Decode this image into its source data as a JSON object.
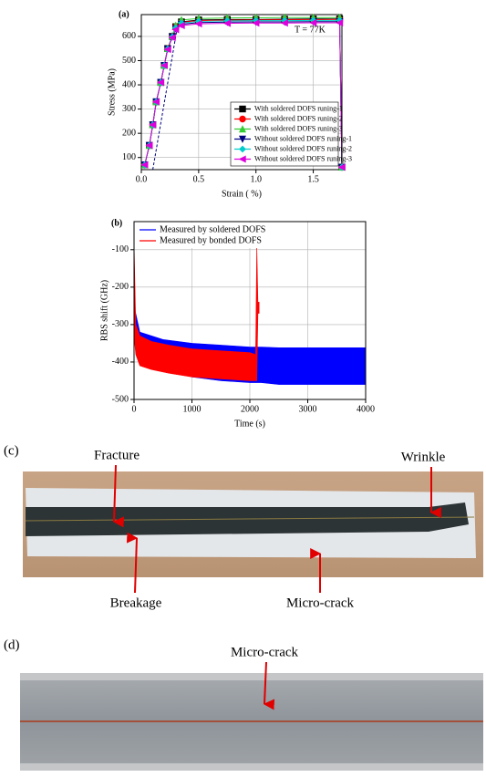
{
  "chart_data": [
    {
      "type": "line",
      "panel_label": "(a)",
      "x_label": "Strain ( %)",
      "y_label": "Stress (MPa)",
      "annotation": "T = 77K",
      "x": [
        0.03,
        0.07,
        0.1,
        0.13,
        0.17,
        0.2,
        0.23,
        0.27,
        0.3,
        0.35,
        0.5,
        0.75,
        1.0,
        1.25,
        1.5,
        1.73,
        1.75
      ],
      "series": [
        {
          "name": "With soldered DOFS runing-1",
          "color": "#000000",
          "marker": "square",
          "values": [
            70,
            150,
            235,
            330,
            410,
            480,
            550,
            600,
            640,
            660,
            668,
            670,
            670,
            671,
            672,
            672,
            60
          ]
        },
        {
          "name": "With soldered DOFS runing-2",
          "color": "#ff0000",
          "marker": "circle",
          "values": [
            70,
            150,
            235,
            330,
            410,
            480,
            550,
            600,
            640,
            658,
            665,
            667,
            668,
            669,
            669,
            670,
            60
          ]
        },
        {
          "name": "With soldered DOFS runing-3",
          "color": "#33cc33",
          "marker": "triangle-up",
          "values": [
            70,
            150,
            235,
            330,
            410,
            480,
            550,
            602,
            645,
            668,
            674,
            676,
            677,
            678,
            678,
            678,
            60
          ]
        },
        {
          "name": "Without soldered DOFS runing-1",
          "color": "#000080",
          "marker": "triangle-down",
          "values": [
            70,
            150,
            235,
            330,
            410,
            480,
            548,
            598,
            632,
            650,
            657,
            659,
            660,
            660,
            661,
            661,
            60
          ]
        },
        {
          "name": "Without soldered DOFS runing-2",
          "color": "#00cccc",
          "marker": "diamond",
          "values": [
            70,
            150,
            235,
            330,
            410,
            480,
            548,
            598,
            635,
            655,
            662,
            664,
            665,
            665,
            666,
            666,
            60
          ]
        },
        {
          "name": "Without soldered DOFS runing-3",
          "color": "#dd00dd",
          "marker": "triangle-left",
          "values": [
            70,
            150,
            235,
            330,
            410,
            480,
            546,
            595,
            628,
            645,
            652,
            654,
            655,
            655,
            656,
            656,
            60
          ]
        }
      ],
      "guide_line": {
        "color": "#000080",
        "x": [
          0.1,
          0.32
        ],
        "y": [
          50,
          655
        ]
      },
      "xlim": [
        0,
        1.75
      ],
      "xticks": [
        {
          "value": 0,
          "label": "0.0"
        },
        0.5,
        {
          "value": 1,
          "label": "1.0"
        },
        1.5
      ],
      "ylim": [
        50,
        690
      ],
      "yticks": [
        100,
        200,
        300,
        400,
        500,
        600
      ],
      "grid": true,
      "legend": "lower-right"
    },
    {
      "type": "band",
      "panel_label": "(b)",
      "x_label": "Time (s)",
      "y_label": "RBS shift (GHz)",
      "series": [
        {
          "name": "Measured by soldered DOFS",
          "color": "#0000ff",
          "x": [
            0,
            100,
            500,
            1000,
            1500,
            2000,
            2200,
            2500,
            3000,
            3500,
            4000
          ],
          "upper": [
            -250,
            -320,
            -340,
            -350,
            -355,
            -360,
            -360,
            -362,
            -362,
            -362,
            -362
          ],
          "lower": [
            -330,
            -380,
            -420,
            -440,
            -450,
            -455,
            -455,
            -460,
            -460,
            -460,
            -460
          ]
        },
        {
          "name": "Measured by bonded DOFS",
          "color": "#ff0000",
          "x": [
            0,
            30,
            100,
            300,
            600,
            1000,
            1500,
            2000,
            2100,
            2120,
            2140,
            2160
          ],
          "upper": [
            -80,
            -300,
            -330,
            -345,
            -355,
            -365,
            -370,
            -375,
            -380,
            -90,
            -240,
            -240
          ],
          "lower": [
            -330,
            -380,
            -410,
            -420,
            -430,
            -440,
            -445,
            -450,
            -450,
            -450,
            -270,
            -270
          ]
        }
      ],
      "xlim": [
        0,
        4000
      ],
      "xticks": [
        0,
        1000,
        2000,
        3000,
        4000
      ],
      "ylim": [
        -500,
        -25
      ],
      "yticks": [
        -500,
        -400,
        -300,
        -200,
        -100
      ],
      "grid": true,
      "legend": "upper-left"
    }
  ],
  "photo_c": {
    "panel_label": "(c)",
    "labels": [
      "Fracture",
      "Wrinkle",
      "Breakage",
      "Micro-crack"
    ]
  },
  "photo_d": {
    "panel_label": "(d)",
    "labels": [
      "Micro-crack"
    ]
  }
}
